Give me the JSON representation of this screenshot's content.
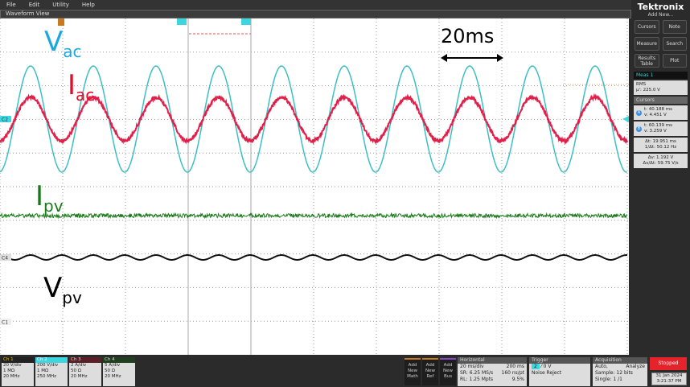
{
  "menu": [
    "File",
    "Edit",
    "Utility",
    "Help"
  ],
  "view_title": "Waveform View",
  "labels": {
    "vac": {
      "main": "V",
      "sub": "ac"
    },
    "iac": {
      "main": "I",
      "sub": "ac"
    },
    "ipv": {
      "main": "I",
      "sub": "pv"
    },
    "vpv": {
      "main": "V",
      "sub": "pv"
    },
    "time_annotation": "20ms"
  },
  "markers": {
    "ch2": "C2",
    "ch4": "C4",
    "ch1": "C1",
    "trigger": "T",
    "cursor_a": "A",
    "cursor_b": "B"
  },
  "colors": {
    "vac": "#3cbfc4",
    "iac": "#e0204a",
    "ipv": "#1a7a1a",
    "vpv": "#111111",
    "ch1": "#e6c619",
    "ch2": "#3cd6e0",
    "ch3": "#b0203a",
    "ch4": "#2e7d2e"
  },
  "side": {
    "brand": "Tektronix",
    "add_new": "Add New...",
    "buttons": [
      "Cursors",
      "Note",
      "Measure",
      "Search",
      "Results Table",
      "Plot"
    ],
    "meas_title": "Meas 1",
    "meas_type": "RMS",
    "meas_value": "μ': 225.0 V",
    "cursors_title": "Cursors",
    "cursor_a": {
      "t": "t: 40.188 ms",
      "v": "v: 4.451 V"
    },
    "cursor_b": {
      "t": "t: 60.139 ms",
      "v": "v: 3.259 V"
    },
    "delta_t": "Δt: 19.951 ms",
    "inv_dt": "1/Δt: 50.12 Hz",
    "delta_v": "Δv: 1.192 V",
    "dv_dt": "Δv/Δt: 59.75 V/s"
  },
  "channels": [
    {
      "name": "Ch 1",
      "scale": "20 V/div",
      "imp": "1 MΩ",
      "bw": "20 MHz"
    },
    {
      "name": "Ch 2",
      "scale": "200 V/div",
      "imp": "1 MΩ",
      "bw": "250 MHz"
    },
    {
      "name": "Ch 3",
      "scale": "2 A/div",
      "imp": "50 Ω",
      "bw": "20 MHz"
    },
    {
      "name": "Ch 4",
      "scale": "5 A/div",
      "imp": "50 Ω",
      "bw": "20 MHz"
    }
  ],
  "add_buttons": [
    "Add New Math",
    "Add New Ref",
    "Add New Bus"
  ],
  "horizontal": {
    "title": "Horizontal",
    "scale": "20 ms/div",
    "pos": "200 ms",
    "sr": "SR: 6.25 MS/s",
    "pts": "160 ns/pt",
    "rl": "RL: 1.25 Mpts",
    "pct": "9.5%"
  },
  "trigger": {
    "title": "Trigger",
    "src": "2",
    "level": "0 V",
    "mode": "Noise Reject"
  },
  "acquisition": {
    "title": "Acquisition",
    "mode": "Auto,",
    "analyze": "Analyze",
    "sample": "Sample: 12 bits",
    "single": "Single: 1 /1"
  },
  "status": "Stopped",
  "date": "31 Jan 2024",
  "time": "3:21:37 PM"
}
